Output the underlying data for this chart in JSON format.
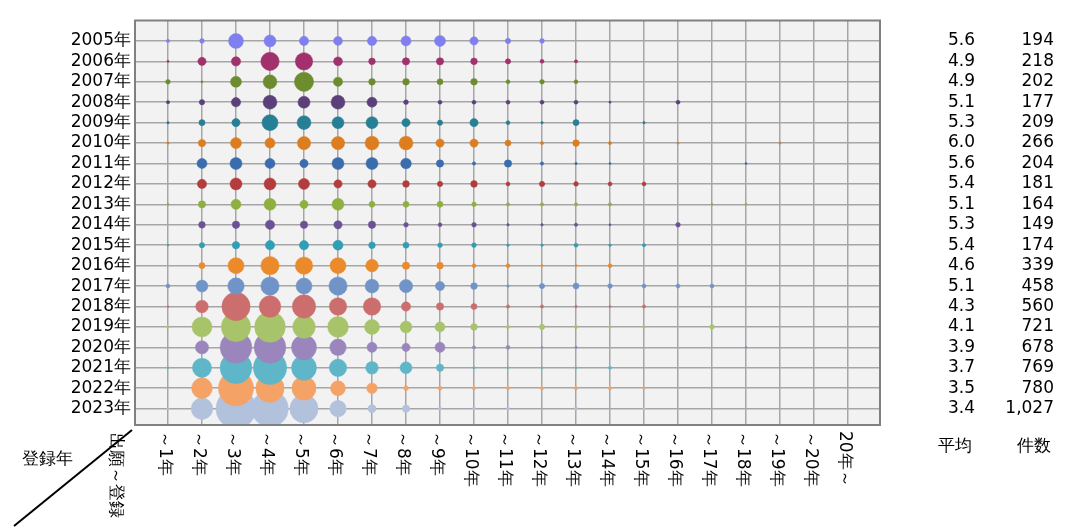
{
  "chart_data": {
    "type": "bubble",
    "ylabel": "登録年",
    "grid": true,
    "legend": false,
    "categories": [
      "～1年",
      "～2年",
      "～3年",
      "～4年",
      "～5年",
      "～6年",
      "～7年",
      "～8年",
      "～9年",
      "～10年",
      "～11年",
      "～12年",
      "～13年",
      "～14年",
      "～15年",
      "～16年",
      "～17年",
      "～18年",
      "～19年",
      "～20年",
      "20年～"
    ],
    "ylim": [
      2023.8,
      2004
    ],
    "yticks": [
      {
        "value": 2005,
        "label": "2005年"
      },
      {
        "value": 2006,
        "label": "2006年"
      },
      {
        "value": 2007,
        "label": "2007年"
      },
      {
        "value": 2008,
        "label": "2008年"
      },
      {
        "value": 2009,
        "label": "2009年"
      },
      {
        "value": 2010,
        "label": "2010年"
      },
      {
        "value": 2011,
        "label": "2011年"
      },
      {
        "value": 2012,
        "label": "2012年"
      },
      {
        "value": 2013,
        "label": "2013年"
      },
      {
        "value": 2014,
        "label": "2014年"
      },
      {
        "value": 2015,
        "label": "2015年"
      },
      {
        "value": 2016,
        "label": "2016年"
      },
      {
        "value": 2017,
        "label": "2017年"
      },
      {
        "value": 2018,
        "label": "2018年"
      },
      {
        "value": 2019,
        "label": "2019年"
      },
      {
        "value": 2020,
        "label": "2020年"
      },
      {
        "value": 2021,
        "label": "2021年"
      },
      {
        "value": 2022,
        "label": "2022年"
      },
      {
        "value": 2023,
        "label": "2023年"
      }
    ],
    "series": [
      {
        "color": "#7f7ff0",
        "values": [
          2005,
          2005,
          2005,
          2005,
          2005,
          2005,
          2005,
          2005,
          2005,
          2005,
          2005,
          2005,
          null,
          null,
          null,
          null,
          null,
          null,
          null,
          null,
          null
        ],
        "sizes": [
          0.007,
          0.014,
          0.14,
          0.09,
          0.054,
          0.05,
          0.054,
          0.063,
          0.076,
          0.043,
          0.018,
          0.014,
          null,
          null,
          null,
          null,
          null,
          null,
          null,
          null,
          null
        ]
      },
      {
        "color": "#a2306c",
        "values": [
          2006,
          2006,
          2006,
          2006,
          2006,
          2006,
          2006,
          2006,
          2006,
          2006,
          2006,
          2006,
          2006,
          null,
          null,
          null,
          null,
          null,
          null,
          null,
          null
        ],
        "sizes": [
          0.003,
          0.043,
          0.054,
          0.21,
          0.19,
          0.05,
          0.028,
          0.034,
          0.034,
          0.028,
          0.018,
          0.01,
          0.007,
          null,
          null,
          null,
          null,
          null,
          null,
          null,
          null
        ]
      },
      {
        "color": "#6d8c2f",
        "values": [
          2007,
          2007,
          2007,
          2007,
          2007,
          2007,
          2007,
          2007,
          2007,
          2007,
          2007,
          2007,
          2007,
          null,
          null,
          null,
          null,
          null,
          null,
          null,
          null
        ],
        "sizes": [
          0.014,
          0.003,
          0.076,
          0.12,
          0.23,
          0.054,
          0.028,
          0.028,
          0.023,
          0.028,
          0.01,
          0.014,
          0.01,
          null,
          null,
          null,
          null,
          null,
          null,
          null,
          null
        ]
      },
      {
        "color": "#5c407a",
        "values": [
          2008,
          2008,
          2008,
          2008,
          2008,
          2008,
          2008,
          2008,
          2008,
          2008,
          2008,
          2008,
          2008,
          2008,
          null,
          2008,
          null,
          null,
          null,
          null,
          null
        ],
        "sizes": [
          0.007,
          0.018,
          0.054,
          0.12,
          0.09,
          0.12,
          0.063,
          0.014,
          0.01,
          0.01,
          0.01,
          0.01,
          0.01,
          0.003,
          null,
          0.01,
          null,
          null,
          null,
          null,
          null
        ]
      },
      {
        "color": "#277f95",
        "values": [
          2009,
          2009,
          2009,
          2009,
          2009,
          2009,
          2009,
          2009,
          2009,
          2009,
          2009,
          2009,
          2009,
          null,
          2009,
          null,
          null,
          null,
          null,
          null,
          null
        ],
        "sizes": [
          0.004,
          0.023,
          0.043,
          0.16,
          0.12,
          0.09,
          0.09,
          0.043,
          0.018,
          0.043,
          0.01,
          0.004,
          0.023,
          null,
          0.004,
          null,
          null,
          null,
          null,
          null,
          null
        ]
      },
      {
        "color": "#dc7d1f",
        "values": [
          2010,
          2010,
          2010,
          2010,
          2010,
          2010,
          2010,
          2010,
          2010,
          2010,
          2010,
          2010,
          2010,
          2010,
          null,
          2010,
          null,
          null,
          2010,
          null,
          null
        ],
        "sizes": [
          0.004,
          0.034,
          0.076,
          0.063,
          0.11,
          0.11,
          0.12,
          0.12,
          0.043,
          0.043,
          0.023,
          0.007,
          0.028,
          0.007,
          null,
          0.003,
          null,
          null,
          0.003,
          null,
          null
        ]
      },
      {
        "color": "#3b6cae",
        "values": [
          null,
          2011,
          2011,
          2011,
          2011,
          2011,
          2011,
          2011,
          2011,
          2011,
          2011,
          2011,
          2011,
          2011,
          null,
          null,
          null,
          2011,
          null,
          null,
          null
        ],
        "sizes": [
          null,
          0.063,
          0.09,
          0.063,
          0.043,
          0.09,
          0.09,
          0.071,
          0.034,
          0.007,
          0.034,
          0.007,
          0.004,
          0.003,
          null,
          null,
          null,
          0.003,
          null,
          null,
          null
        ]
      },
      {
        "color": "#b33c3c",
        "values": [
          null,
          2012,
          2012,
          2012,
          2012,
          2012,
          2012,
          2012,
          2012,
          2012,
          2012,
          2012,
          2012,
          2012,
          2012,
          null,
          null,
          null,
          null,
          null,
          null
        ],
        "sizes": [
          null,
          0.054,
          0.09,
          0.09,
          0.076,
          0.043,
          0.043,
          0.028,
          0.018,
          0.028,
          0.01,
          0.018,
          0.014,
          0.01,
          0.01,
          null,
          null,
          null,
          null,
          null,
          null
        ]
      },
      {
        "color": "#8fb040",
        "values": [
          2013,
          2013,
          2013,
          2013,
          2013,
          2013,
          2013,
          2013,
          2013,
          2013,
          2013,
          2013,
          2013,
          2013,
          null,
          null,
          2013,
          2013,
          null,
          null,
          null
        ],
        "sizes": [
          0.003,
          0.034,
          0.063,
          0.09,
          0.043,
          0.09,
          0.023,
          0.023,
          0.023,
          0.014,
          0.007,
          0.007,
          0.007,
          0.007,
          null,
          null,
          0.003,
          0.003,
          null,
          null,
          null
        ]
      },
      {
        "color": "#6e5096",
        "values": [
          null,
          2014,
          2014,
          2014,
          2014,
          2014,
          2014,
          2014,
          2014,
          2014,
          2014,
          2014,
          2014,
          2014,
          null,
          2014,
          null,
          null,
          null,
          null,
          null
        ],
        "sizes": [
          null,
          0.028,
          0.034,
          0.054,
          0.034,
          0.043,
          0.034,
          0.014,
          0.01,
          0.014,
          0.004,
          0.004,
          0.007,
          0.003,
          null,
          0.014,
          null,
          null,
          null,
          null,
          null
        ]
      },
      {
        "color": "#2f9fb5",
        "values": [
          2015,
          2015,
          2015,
          2015,
          2015,
          2015,
          2015,
          2015,
          2015,
          2015,
          2015,
          2015,
          2015,
          2015,
          2015,
          null,
          null,
          null,
          null,
          null,
          null
        ],
        "sizes": [
          0.002,
          0.018,
          0.034,
          0.054,
          0.054,
          0.063,
          0.028,
          0.023,
          0.014,
          0.014,
          0.004,
          0.004,
          0.01,
          0.004,
          0.007,
          null,
          null,
          null,
          null,
          null,
          null
        ]
      },
      {
        "color": "#ea8a2a",
        "values": [
          null,
          2016,
          2016,
          2016,
          2016,
          2016,
          2016,
          2016,
          2016,
          2016,
          2016,
          2016,
          2016,
          2016,
          null,
          null,
          null,
          null,
          null,
          null,
          null
        ],
        "sizes": [
          null,
          0.023,
          0.16,
          0.21,
          0.19,
          0.16,
          0.1,
          0.034,
          0.028,
          0.01,
          0.01,
          0.003,
          0.003,
          0.01,
          null,
          null,
          null,
          null,
          null,
          null,
          null
        ]
      },
      {
        "color": "#7094c8",
        "values": [
          2017,
          2017,
          2017,
          2017,
          2017,
          2017,
          2017,
          2017,
          2017,
          2017,
          2017,
          2017,
          2017,
          2017,
          2017,
          2017,
          2017,
          null,
          null,
          null,
          null
        ],
        "sizes": [
          0.01,
          0.09,
          0.17,
          0.21,
          0.16,
          0.21,
          0.12,
          0.11,
          0.054,
          0.028,
          0.004,
          0.018,
          0.023,
          0.014,
          0.01,
          0.01,
          0.01,
          null,
          null,
          null,
          null
        ]
      },
      {
        "color": "#cd6e6e",
        "values": [
          2018,
          2018,
          2018,
          2018,
          2018,
          2018,
          2018,
          2018,
          2018,
          2018,
          2018,
          2018,
          2018,
          2018,
          2018,
          null,
          null,
          null,
          null,
          null,
          null
        ],
        "sizes": [
          0.002,
          0.1,
          0.5,
          0.29,
          0.34,
          0.19,
          0.19,
          0.054,
          0.034,
          0.023,
          0.007,
          0.007,
          0.004,
          0.003,
          0.007,
          null,
          null,
          null,
          null,
          null,
          null
        ]
      },
      {
        "color": "#a8c46a",
        "values": [
          2019,
          2019,
          2019,
          2019,
          2019,
          2019,
          2019,
          2019,
          2019,
          2019,
          2019,
          2019,
          2019,
          2019,
          2019,
          null,
          2019,
          null,
          null,
          null,
          null
        ],
        "sizes": [
          0.004,
          0.25,
          0.54,
          0.59,
          0.32,
          0.27,
          0.14,
          0.09,
          0.063,
          0.028,
          0.007,
          0.018,
          0.007,
          0.004,
          0.004,
          null,
          0.014,
          null,
          null,
          null,
          null
        ]
      },
      {
        "color": "#9a86bd",
        "values": [
          null,
          2020,
          2020,
          2020,
          2020,
          2020,
          2020,
          2020,
          2020,
          2020,
          2020,
          2020,
          2020,
          null,
          null,
          null,
          null,
          2020,
          null,
          null,
          null
        ],
        "sizes": [
          null,
          0.11,
          0.63,
          0.63,
          0.39,
          0.17,
          0.063,
          0.043,
          0.063,
          0.007,
          0.01,
          0.003,
          0.004,
          null,
          null,
          null,
          null,
          0.003,
          null,
          null,
          null
        ]
      },
      {
        "color": "#5fb6c9",
        "values": [
          2021,
          2021,
          2021,
          2021,
          2021,
          2021,
          2021,
          2021,
          2021,
          2021,
          2021,
          2021,
          2021,
          2021,
          null,
          null,
          null,
          null,
          null,
          null,
          null
        ],
        "sizes": [
          0.003,
          0.23,
          0.63,
          0.69,
          0.39,
          0.19,
          0.1,
          0.09,
          0.034,
          0.004,
          0.003,
          0.003,
          0.003,
          0.007,
          null,
          null,
          null,
          null,
          null,
          null,
          null
        ]
      },
      {
        "color": "#f4a266",
        "values": [
          null,
          2022,
          2022,
          2022,
          2022,
          2022,
          2022,
          2022,
          2022,
          2022,
          2022,
          2022,
          2022,
          2022,
          2022,
          null,
          null,
          null,
          null,
          null,
          null
        ],
        "sizes": [
          null,
          0.27,
          0.77,
          0.5,
          0.36,
          0.14,
          0.071,
          0.014,
          0.01,
          0.007,
          0.007,
          0.007,
          0.007,
          0.007,
          0.004,
          null,
          null,
          null,
          null,
          null,
          null
        ]
      },
      {
        "color": "#b2c2dc",
        "values": [
          2023,
          2023,
          2023,
          2023,
          2023,
          2023,
          2023,
          2023,
          2023,
          2023,
          2023,
          null,
          2023,
          null,
          2023,
          null,
          null,
          null,
          null,
          null,
          null
        ],
        "sizes": [
          0.002,
          0.29,
          1,
          0.84,
          0.5,
          0.17,
          0.043,
          0.034,
          0.007,
          0.007,
          0.007,
          null,
          0.007,
          null,
          0.004,
          null,
          null,
          null,
          null,
          null,
          null
        ]
      }
    ],
    "annotations": [
      "5.6",
      "194",
      "4.9",
      "218",
      "4.9",
      "202",
      "5.1",
      "177",
      "5.3",
      "209",
      "6.0",
      "266",
      "5.6",
      "204",
      "5.4",
      "181",
      "5.1",
      "164",
      "5.3",
      "149",
      "5.4",
      "174",
      "4.6",
      "339",
      "5.1",
      "458",
      "4.3",
      "560",
      "4.1",
      "721",
      "3.9",
      "678",
      "3.7",
      "769",
      "3.5",
      "780",
      "3.4",
      "1,027",
      "平均",
      "件数",
      "出願～登録"
    ]
  }
}
